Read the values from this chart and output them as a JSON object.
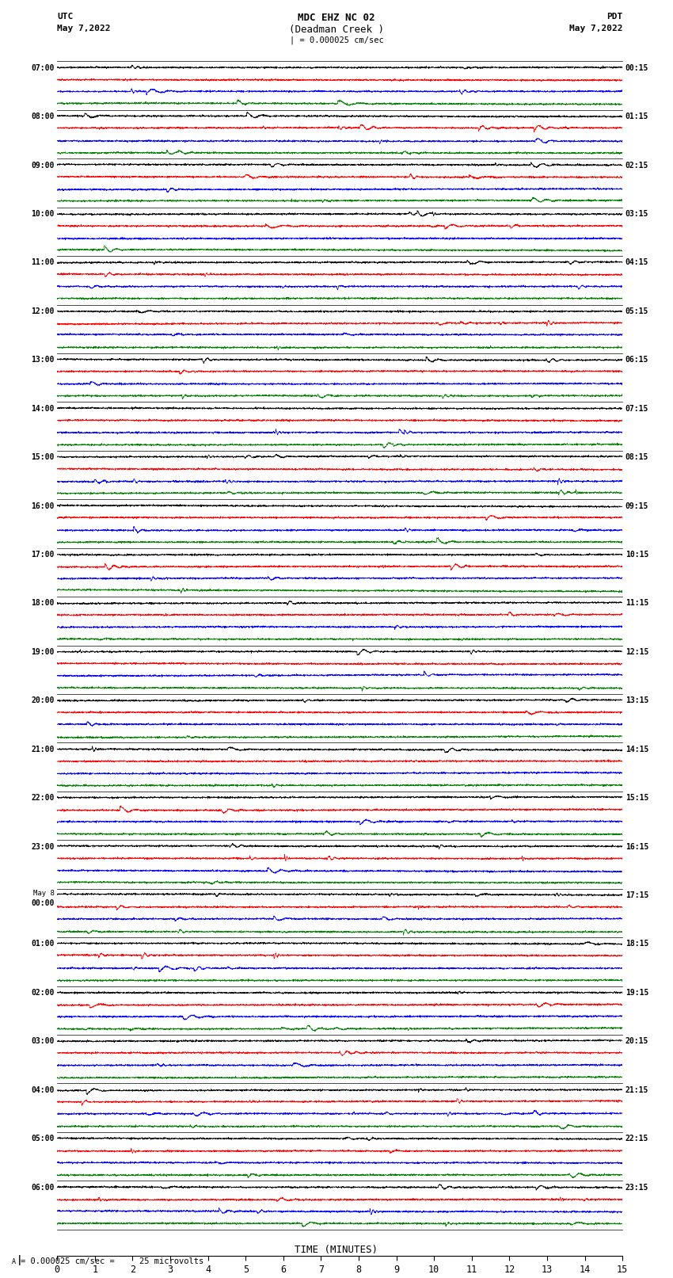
{
  "title_line1": "MDC EHZ NC 02",
  "title_line2": "(Deadman Creek )",
  "title_line3": "| = 0.000025 cm/sec",
  "left_header_line1": "UTC",
  "left_header_line2": "May 7,2022",
  "right_header_line1": "PDT",
  "right_header_line2": "May 7,2022",
  "xlabel": "TIME (MINUTES)",
  "bottom_note": "= 0.000025 cm/sec =     25 microvolts",
  "bg_color": "#ffffff",
  "trace_colors": [
    "black",
    "red",
    "blue",
    "green"
  ],
  "n_rows": 24,
  "utc_start_labels": [
    "07:00",
    "08:00",
    "09:00",
    "10:00",
    "11:00",
    "12:00",
    "13:00",
    "14:00",
    "15:00",
    "16:00",
    "17:00",
    "18:00",
    "19:00",
    "20:00",
    "21:00",
    "22:00",
    "23:00",
    "May 8\n00:00",
    "01:00",
    "02:00",
    "03:00",
    "04:00",
    "05:00",
    "06:00"
  ],
  "pdt_start_labels": [
    "00:15",
    "01:15",
    "02:15",
    "03:15",
    "04:15",
    "05:15",
    "06:15",
    "07:15",
    "08:15",
    "09:15",
    "10:15",
    "11:15",
    "12:15",
    "13:15",
    "14:15",
    "15:15",
    "16:15",
    "17:15",
    "18:15",
    "19:15",
    "20:15",
    "21:15",
    "22:15",
    "23:15"
  ],
  "xmin": 0,
  "xmax": 15,
  "xticks": [
    0,
    1,
    2,
    3,
    4,
    5,
    6,
    7,
    8,
    9,
    10,
    11,
    12,
    13,
    14,
    15
  ],
  "figsize": [
    8.5,
    16.13
  ],
  "dpi": 100
}
